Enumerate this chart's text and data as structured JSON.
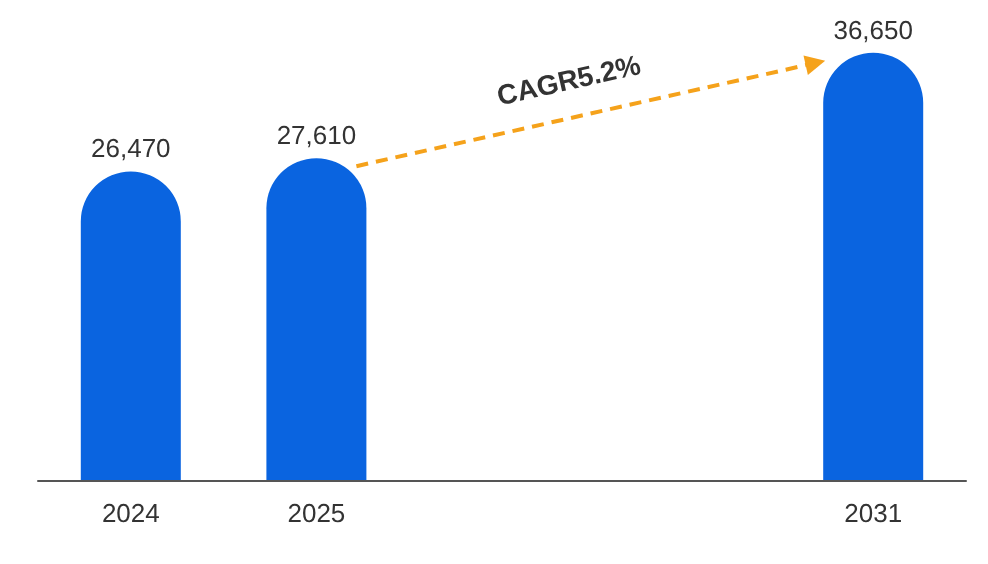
{
  "chart_data": {
    "type": "bar",
    "categories": [
      "2024",
      "2025",
      null,
      null,
      "2031"
    ],
    "values": [
      26470,
      27610,
      null,
      null,
      36650
    ],
    "color": "#0a64e0",
    "value_labels": [
      "26,470",
      "27,610",
      null,
      null,
      "36,650"
    ],
    "annotations": [
      "CAGR5.2%"
    ]
  }
}
